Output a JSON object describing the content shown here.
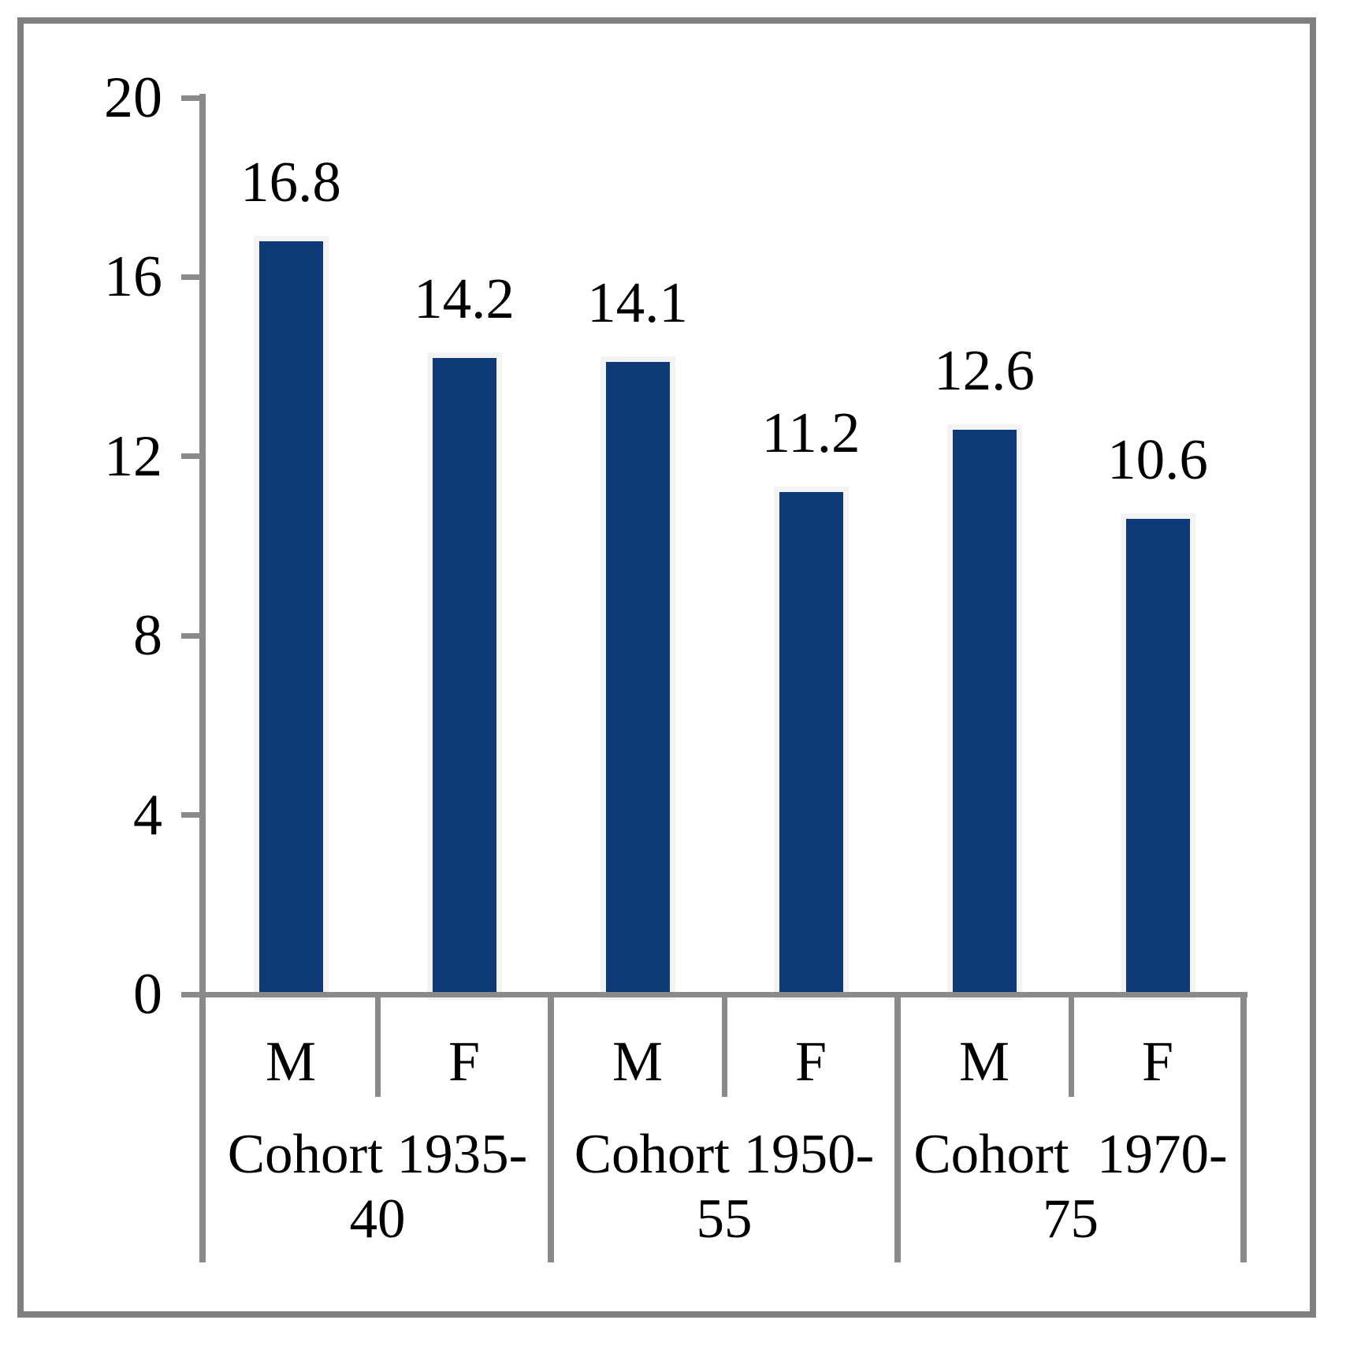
{
  "chart_data": {
    "type": "bar",
    "title": "",
    "xlabel": "",
    "ylabel": "",
    "ylim": [
      0,
      20
    ],
    "y_ticks": [
      "20",
      "16",
      "12",
      "8",
      "4",
      "0"
    ],
    "grid": false,
    "legend": "none",
    "bar_color": "#0d3a77",
    "axis_color": "#8a8a8a",
    "frame_color": "#7f7f7f",
    "categories": [
      "M",
      "F",
      "M",
      "F",
      "M",
      "F"
    ],
    "values": [
      16.8,
      14.2,
      14.1,
      11.2,
      12.6,
      10.6
    ],
    "data_labels": [
      "16.8",
      "14.2",
      "14.1",
      "11.2",
      "12.6",
      "10.6"
    ],
    "groups": [
      {
        "label": "Cohort 1935-40",
        "label_wrapped": "Cohort 1935-\n40",
        "bars": [
          {
            "category": "M",
            "value": 16.8
          },
          {
            "category": "F",
            "value": 14.2
          }
        ]
      },
      {
        "label": "Cohort 1950-55",
        "label_wrapped": "Cohort 1950-\n55",
        "bars": [
          {
            "category": "M",
            "value": 14.1
          },
          {
            "category": "F",
            "value": 11.2
          }
        ]
      },
      {
        "label": "Cohort 1970-75",
        "label_wrapped": "Cohort  1970-\n75",
        "bars": [
          {
            "category": "M",
            "value": 12.6
          },
          {
            "category": "F",
            "value": 10.6
          }
        ]
      }
    ]
  }
}
